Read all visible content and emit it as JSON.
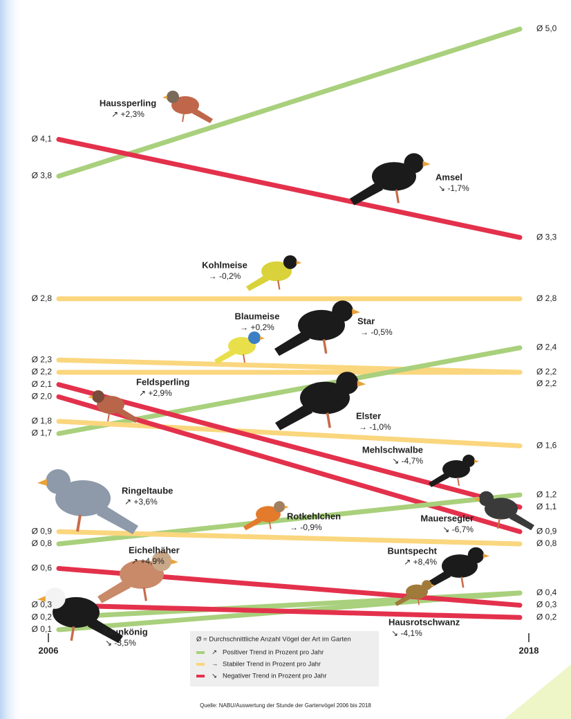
{
  "chart_data": {
    "type": "slope",
    "categories": [
      "2006",
      "2018"
    ],
    "ylim": [
      0.1,
      5.0
    ],
    "series": [
      {
        "name": "Haussperling",
        "trend": "↗ +2,3%",
        "color": "#a9d07c",
        "values": [
          3.8,
          5.0
        ],
        "value_labels": [
          "Ø 3,8",
          "Ø 5,0"
        ]
      },
      {
        "name": "Amsel",
        "trend": "↘ -1,7%",
        "color": "#e3314c",
        "values": [
          4.1,
          3.3
        ],
        "value_labels": [
          "Ø 4,1",
          "Ø 3,3"
        ]
      },
      {
        "name": "Kohlmeise",
        "trend": "→ -0,2%",
        "color": "#fad67e",
        "values": [
          2.8,
          2.8
        ],
        "value_labels": [
          "Ø 2,8",
          "Ø 2,8"
        ]
      },
      {
        "name": "Blaumeise",
        "trend": "→ +0,2%",
        "color": "#fad67e",
        "values": [
          2.2,
          2.2
        ],
        "value_labels": [
          "Ø 2,2",
          "Ø 2,2"
        ]
      },
      {
        "name": "Star",
        "trend": "→ -0,5%",
        "color": "#fad67e",
        "values": [
          2.3,
          2.2
        ],
        "value_labels": [
          "Ø 2,3",
          "Ø 2,2"
        ]
      },
      {
        "name": "Feldsperling",
        "trend": "↗ +2,9%",
        "color": "#a9d07c",
        "values": [
          1.7,
          2.4
        ],
        "value_labels": [
          "Ø 1,7",
          "Ø 2,4"
        ]
      },
      {
        "name": "Elster",
        "trend": "→ -1,0%",
        "color": "#fad67e",
        "values": [
          1.8,
          1.6
        ],
        "value_labels": [
          "Ø 1,8",
          "Ø 1,6"
        ]
      },
      {
        "name": "Mehlschwalbe",
        "trend": "↘ -4,7%",
        "color": "#e3314c",
        "values": [
          2.1,
          1.1
        ],
        "value_labels": [
          "Ø 2,1",
          "Ø 1,1"
        ]
      },
      {
        "name": "Mauersegler",
        "trend": "↘ -6,7%",
        "color": "#e3314c",
        "values": [
          2.0,
          0.9
        ],
        "value_labels": [
          "Ø 2,0",
          "Ø 0,9"
        ]
      },
      {
        "name": "Ringeltaube",
        "trend": "↗ +3,6%",
        "color": "#a9d07c",
        "values": [
          0.8,
          1.2
        ],
        "value_labels": [
          "Ø 0,8",
          "Ø 1,2"
        ]
      },
      {
        "name": "Rotkehlchen",
        "trend": "→ -0,9%",
        "color": "#fad67e",
        "values": [
          0.9,
          0.8
        ],
        "value_labels": [
          "Ø 0,9",
          "Ø 0,8"
        ]
      },
      {
        "name": "Eichelhäher",
        "trend": "↗ +4,9%",
        "color": "#a9d07c",
        "values": [
          0.2,
          0.4
        ],
        "value_labels": [
          "Ø 0,2",
          "Ø 0,4"
        ]
      },
      {
        "name": "Buntspecht",
        "trend": "↗ +8,4%",
        "color": "#a9d07c",
        "values": [
          0.1,
          0.4
        ],
        "value_labels": [
          "Ø 0,1",
          null
        ]
      },
      {
        "name": "Hausrotschwanz",
        "trend": "↘ -4,1%",
        "color": "#e3314c",
        "values": [
          0.6,
          0.3
        ],
        "value_labels": [
          "Ø 0,6",
          "Ø 0,3"
        ]
      },
      {
        "name": "Zaunkönig",
        "trend": "↘ -3,5%",
        "color": "#e3314c",
        "values": [
          0.3,
          0.2
        ],
        "value_labels": [
          "Ø 0,3",
          "Ø 0,2"
        ]
      }
    ],
    "legend": {
      "note": "Ø = Durchschnittliche Anzahl Vögel der Art im Garten",
      "items": [
        {
          "symbol": "↗",
          "label": "Positiver Trend in Prozent  pro Jahr",
          "color": "#a9d07c"
        },
        {
          "symbol": "→",
          "label": "Stabiler Trend in Prozent pro Jahr",
          "color": "#fad67e"
        },
        {
          "symbol": "↘",
          "label": "Negativer Trend in Prozent pro Jahr",
          "color": "#e3314c"
        }
      ]
    },
    "source": "Quelle: NABU/Auswertung der Stunde der Gartenvögel 2006 bis 2018"
  }
}
